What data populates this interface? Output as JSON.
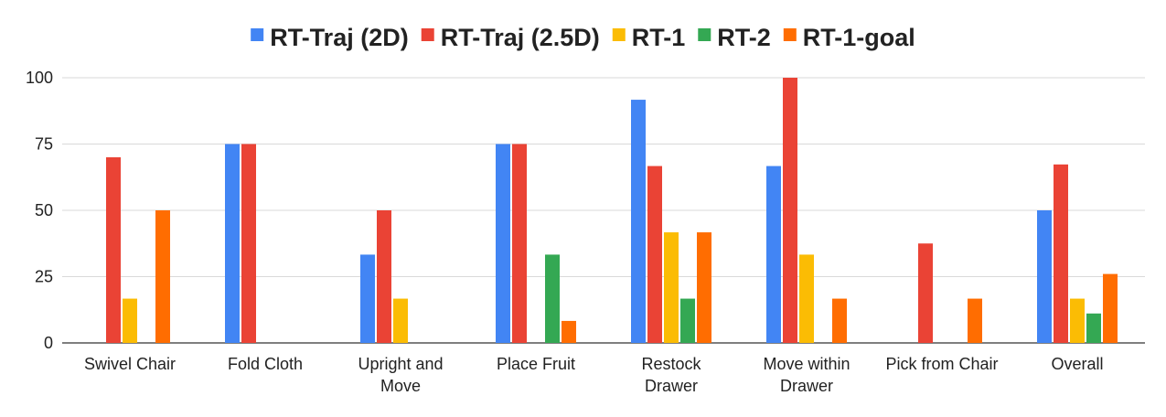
{
  "chart_data": {
    "type": "bar",
    "categories": [
      [
        "Swivel Chair"
      ],
      [
        "Fold Cloth"
      ],
      [
        "Upright and",
        "Move"
      ],
      [
        "Place Fruit"
      ],
      [
        "Restock",
        "Drawer"
      ],
      [
        "Move within",
        "Drawer"
      ],
      [
        "Pick from Chair"
      ],
      [
        "Overall"
      ]
    ],
    "series": [
      {
        "name": "RT-Traj (2D)",
        "color": "#4285f4",
        "values": [
          0,
          75,
          33.3,
          75,
          91.7,
          66.7,
          0,
          50
        ]
      },
      {
        "name": "RT-Traj (2.5D)",
        "color": "#ea4335",
        "values": [
          70,
          75,
          50,
          75,
          66.7,
          100,
          37.5,
          67.3
        ]
      },
      {
        "name": "RT-1",
        "color": "#fbbc04",
        "values": [
          16.7,
          0,
          16.7,
          0,
          41.7,
          33.3,
          0,
          16.7
        ]
      },
      {
        "name": "RT-2",
        "color": "#34a853",
        "values": [
          0,
          0,
          0,
          33.3,
          16.7,
          0,
          0,
          11.1
        ]
      },
      {
        "name": "RT-1-goal",
        "color": "#ff6d01",
        "values": [
          50,
          0,
          0,
          8.3,
          41.7,
          16.7,
          16.7,
          26
        ]
      }
    ],
    "yticks": [
      "0",
      "25",
      "50",
      "75",
      "100"
    ],
    "ylim": [
      0,
      100
    ],
    "grid": true,
    "legend_position": "top"
  }
}
